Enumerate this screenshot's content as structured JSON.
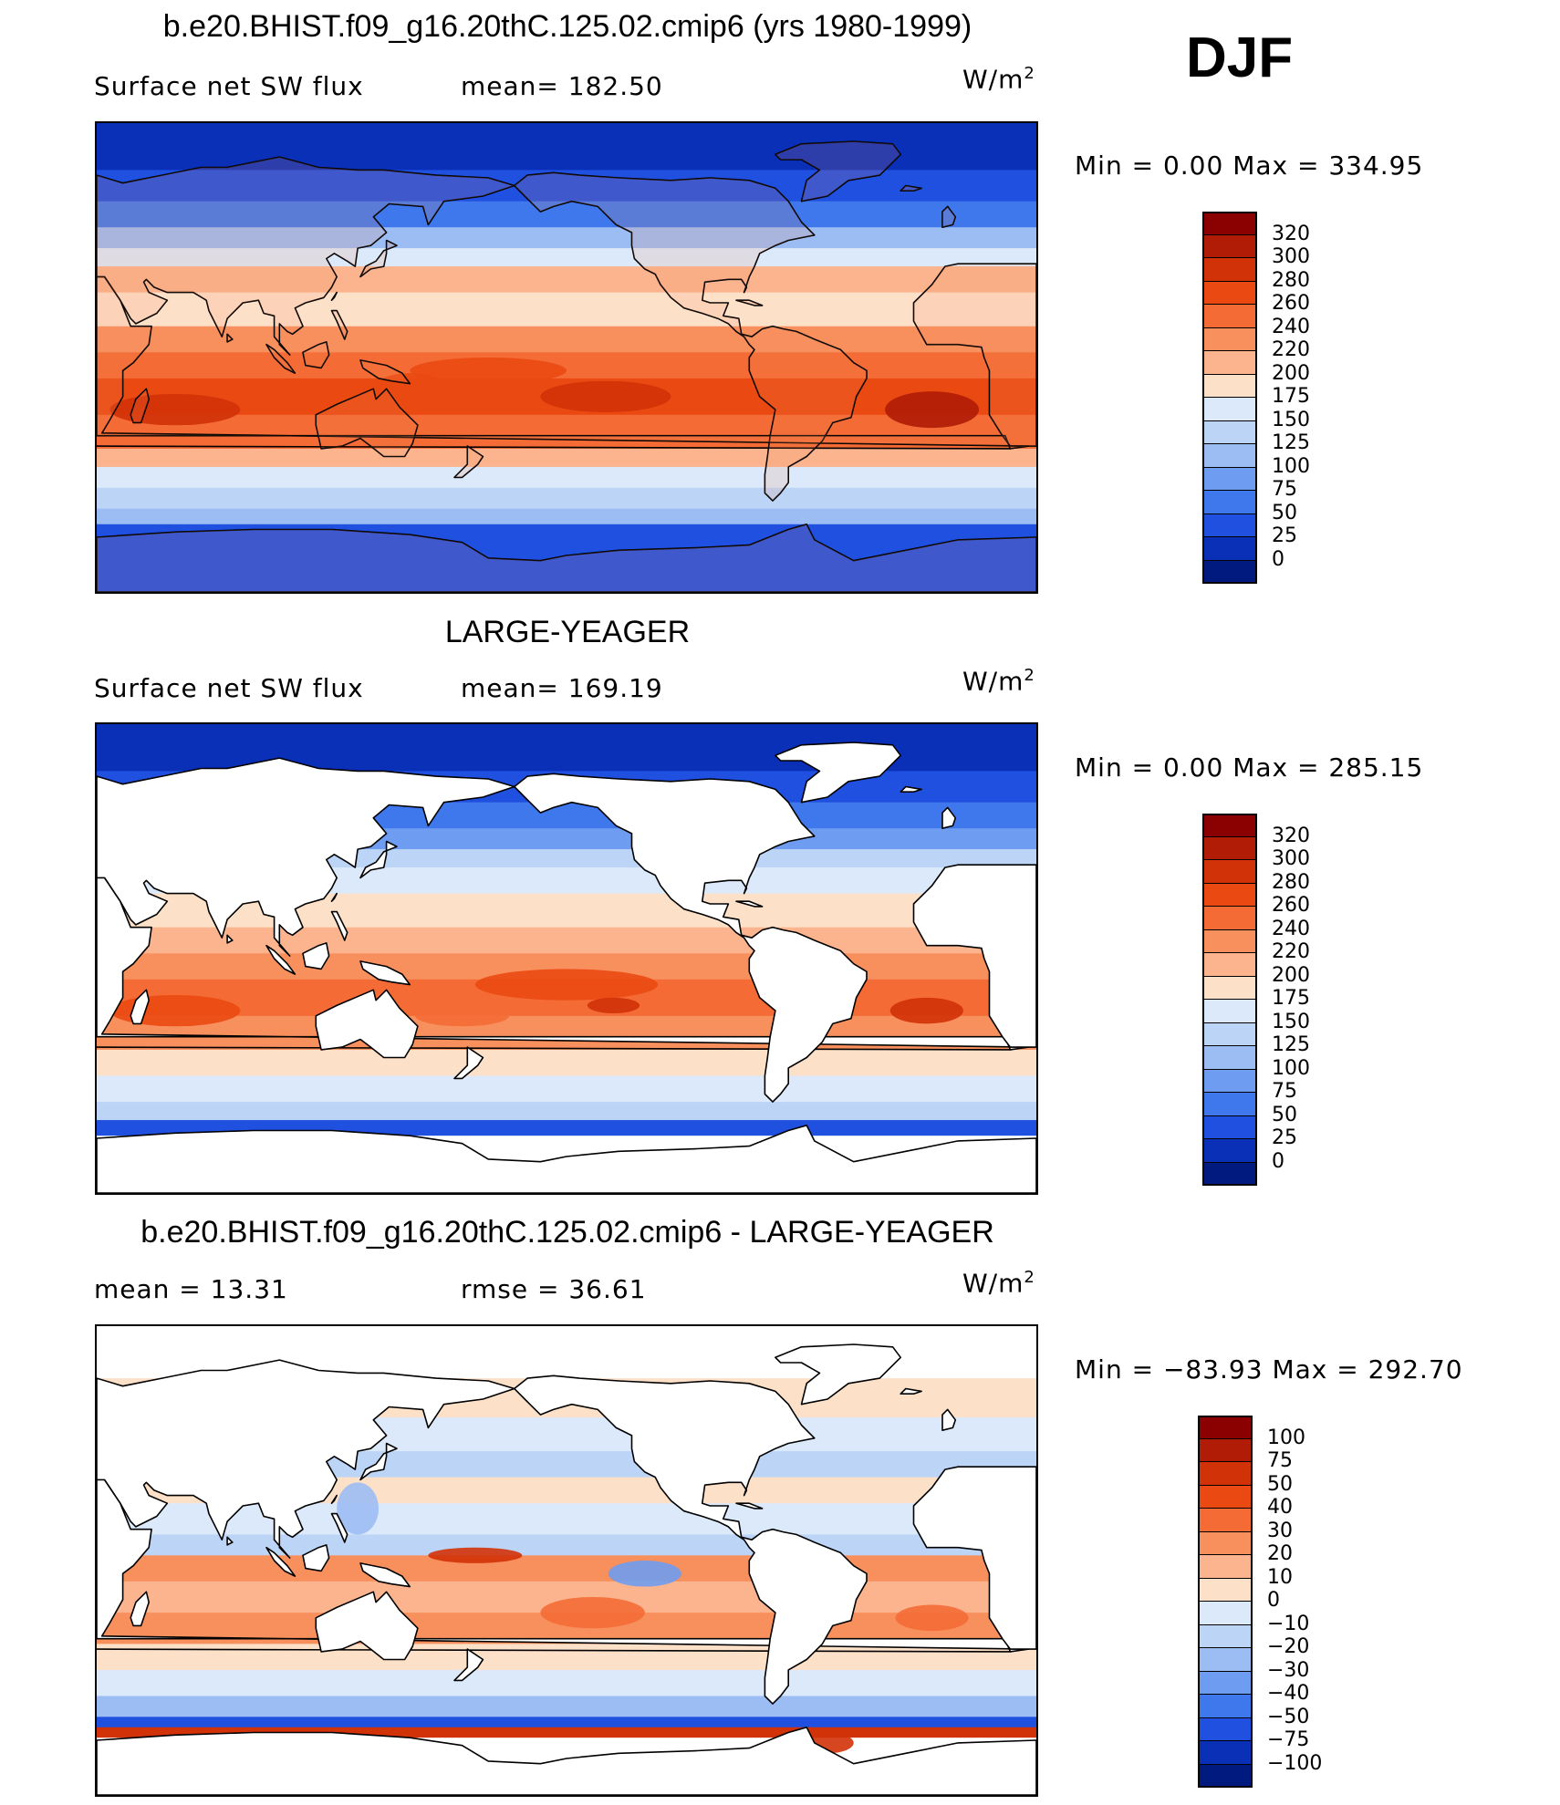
{
  "season": "DJF",
  "panels": [
    {
      "title": "b.e20.BHIST.f09_g16.20thC.125.02.cmip6 (yrs 1980-1999)",
      "left_label": "Surface net SW flux",
      "right_label": "mean=  182.50",
      "unit": "W/m",
      "unit_sup": "2",
      "minmax": "Min =    0.00 Max = 334.95",
      "colorbar_labels": [
        "320",
        "300",
        "280",
        "260",
        "240",
        "220",
        "200",
        "175",
        "150",
        "125",
        "100",
        "75",
        "50",
        "25",
        "0"
      ],
      "colorbar_colors": [
        "#8b0000",
        "#b01c05",
        "#d23208",
        "#ea4a12",
        "#f46b36",
        "#f8905e",
        "#fbb48e",
        "#fde0c8",
        "#dbe9fa",
        "#bcd5f7",
        "#9cbdf4",
        "#6e9cf0",
        "#3f78ec",
        "#1f50e0",
        "#0a30b8",
        "#001a80"
      ],
      "fill_land": false
    },
    {
      "title": "LARGE-YEAGER",
      "left_label": "Surface net SW flux",
      "right_label": "mean=  169.19",
      "unit": "W/m",
      "unit_sup": "2",
      "minmax": "Min =    0.00 Max = 285.15",
      "colorbar_labels": [
        "320",
        "300",
        "280",
        "260",
        "240",
        "220",
        "200",
        "175",
        "150",
        "125",
        "100",
        "75",
        "50",
        "25",
        "0"
      ],
      "colorbar_colors": [
        "#8b0000",
        "#b01c05",
        "#d23208",
        "#ea4a12",
        "#f46b36",
        "#f8905e",
        "#fbb48e",
        "#fde0c8",
        "#dbe9fa",
        "#bcd5f7",
        "#9cbdf4",
        "#6e9cf0",
        "#3f78ec",
        "#1f50e0",
        "#0a30b8",
        "#001a80"
      ],
      "fill_land": true
    },
    {
      "title": "b.e20.BHIST.f09_g16.20thC.125.02.cmip6 - LARGE-YEAGER",
      "left_label": "mean =   13.31",
      "right_label": "rmse =   36.61",
      "unit": "W/m",
      "unit_sup": "2",
      "minmax": "Min = −83.93 Max = 292.70",
      "colorbar_labels": [
        "100",
        "75",
        "50",
        "40",
        "30",
        "20",
        "10",
        "0",
        "−10",
        "−20",
        "−30",
        "−40",
        "−50",
        "−75",
        "−100"
      ],
      "colorbar_colors": [
        "#8b0000",
        "#b01c05",
        "#d23208",
        "#ea4a12",
        "#f46b36",
        "#f8905e",
        "#fbb48e",
        "#fde0c8",
        "#dbe9fa",
        "#bcd5f7",
        "#9cbdf4",
        "#6e9cf0",
        "#3f78ec",
        "#1f50e0",
        "#0a30b8",
        "#001a80"
      ],
      "fill_land": true
    }
  ]
}
